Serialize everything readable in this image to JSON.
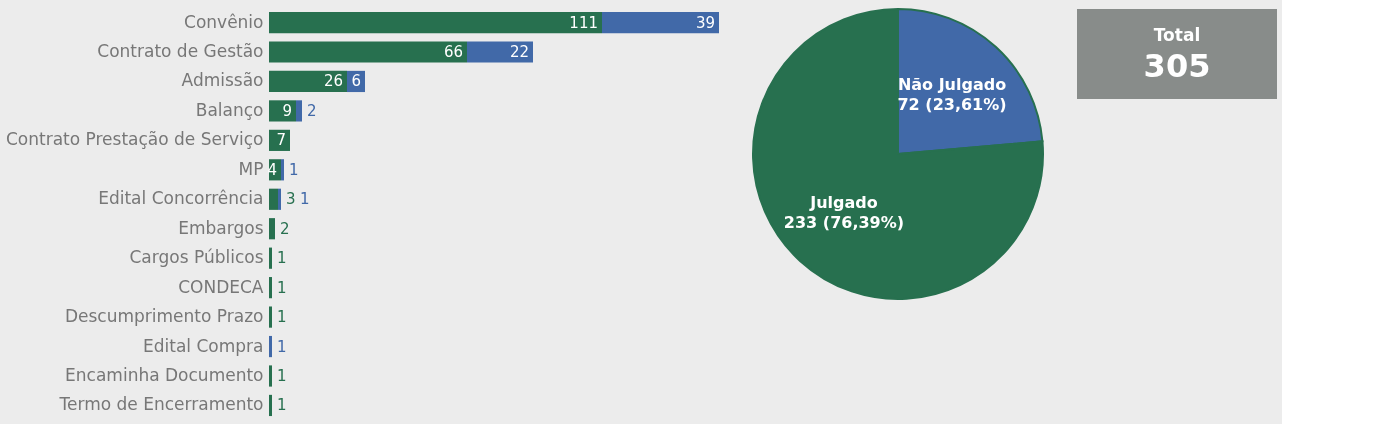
{
  "chart_data": [
    {
      "type": "bar",
      "orientation": "horizontal",
      "stacked": true,
      "data_labels": true,
      "tick_labels": "y",
      "grid": false,
      "categories": [
        "Convênio",
        "Contrato de Gestão",
        "Admissão",
        "Balanço",
        "Contrato Prestação de Serviço",
        "MP",
        "Edital Concorrência",
        "Embargos",
        "Cargos Públicos",
        "CONDECA",
        "Descumprimento Prazo",
        "Edital Compra",
        "Encaminha Documento",
        "Termo de Encerramento"
      ],
      "series": [
        {
          "color": "#27704f",
          "values": [
            111,
            66,
            26,
            9,
            7,
            4,
            3,
            2,
            1,
            1,
            1,
            null,
            1,
            1
          ]
        },
        {
          "color": "#4169a8",
          "values": [
            39,
            22,
            6,
            2,
            null,
            1,
            1,
            null,
            null,
            null,
            null,
            1,
            null,
            null
          ]
        }
      ]
    },
    {
      "type": "pie",
      "categories": [
        "Não Julgado",
        "Julgado"
      ],
      "values": [
        72,
        233
      ],
      "colors": [
        "#4169a8",
        "#27704f"
      ],
      "value_labels": [
        "72 (23,61%)",
        "233 (76,39%)"
      ]
    },
    {
      "type": "other",
      "title": "Total",
      "values": [
        305
      ],
      "data_labels": true
    }
  ]
}
